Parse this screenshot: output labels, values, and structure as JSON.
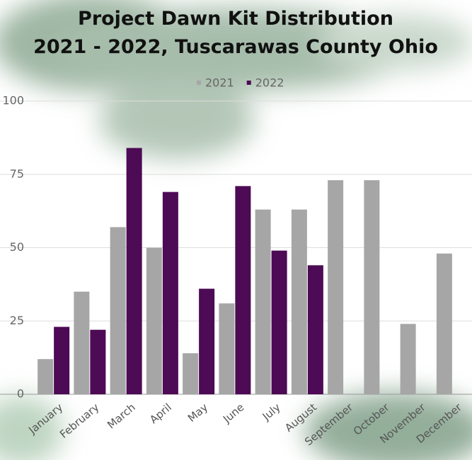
{
  "chart_data": {
    "type": "bar",
    "title": "Project Dawn Kit Distribution",
    "subtitle": "2021 - 2022, Tuscarawas County Ohio",
    "categories": [
      "January",
      "February",
      "March",
      "April",
      "May",
      "June",
      "July",
      "August",
      "September",
      "October",
      "November",
      "December"
    ],
    "series": [
      {
        "name": "2021",
        "color": "#a6a6a6",
        "values": [
          12,
          35,
          57,
          50,
          14,
          31,
          63,
          63,
          73,
          73,
          24,
          48
        ]
      },
      {
        "name": "2022",
        "color": "#4d0a55",
        "values": [
          23,
          22,
          84,
          69,
          36,
          71,
          49,
          44,
          null,
          null,
          null,
          null
        ]
      }
    ],
    "ylim": [
      0,
      100
    ],
    "yticks": [
      0,
      25,
      50,
      75,
      100
    ],
    "grid": true
  }
}
